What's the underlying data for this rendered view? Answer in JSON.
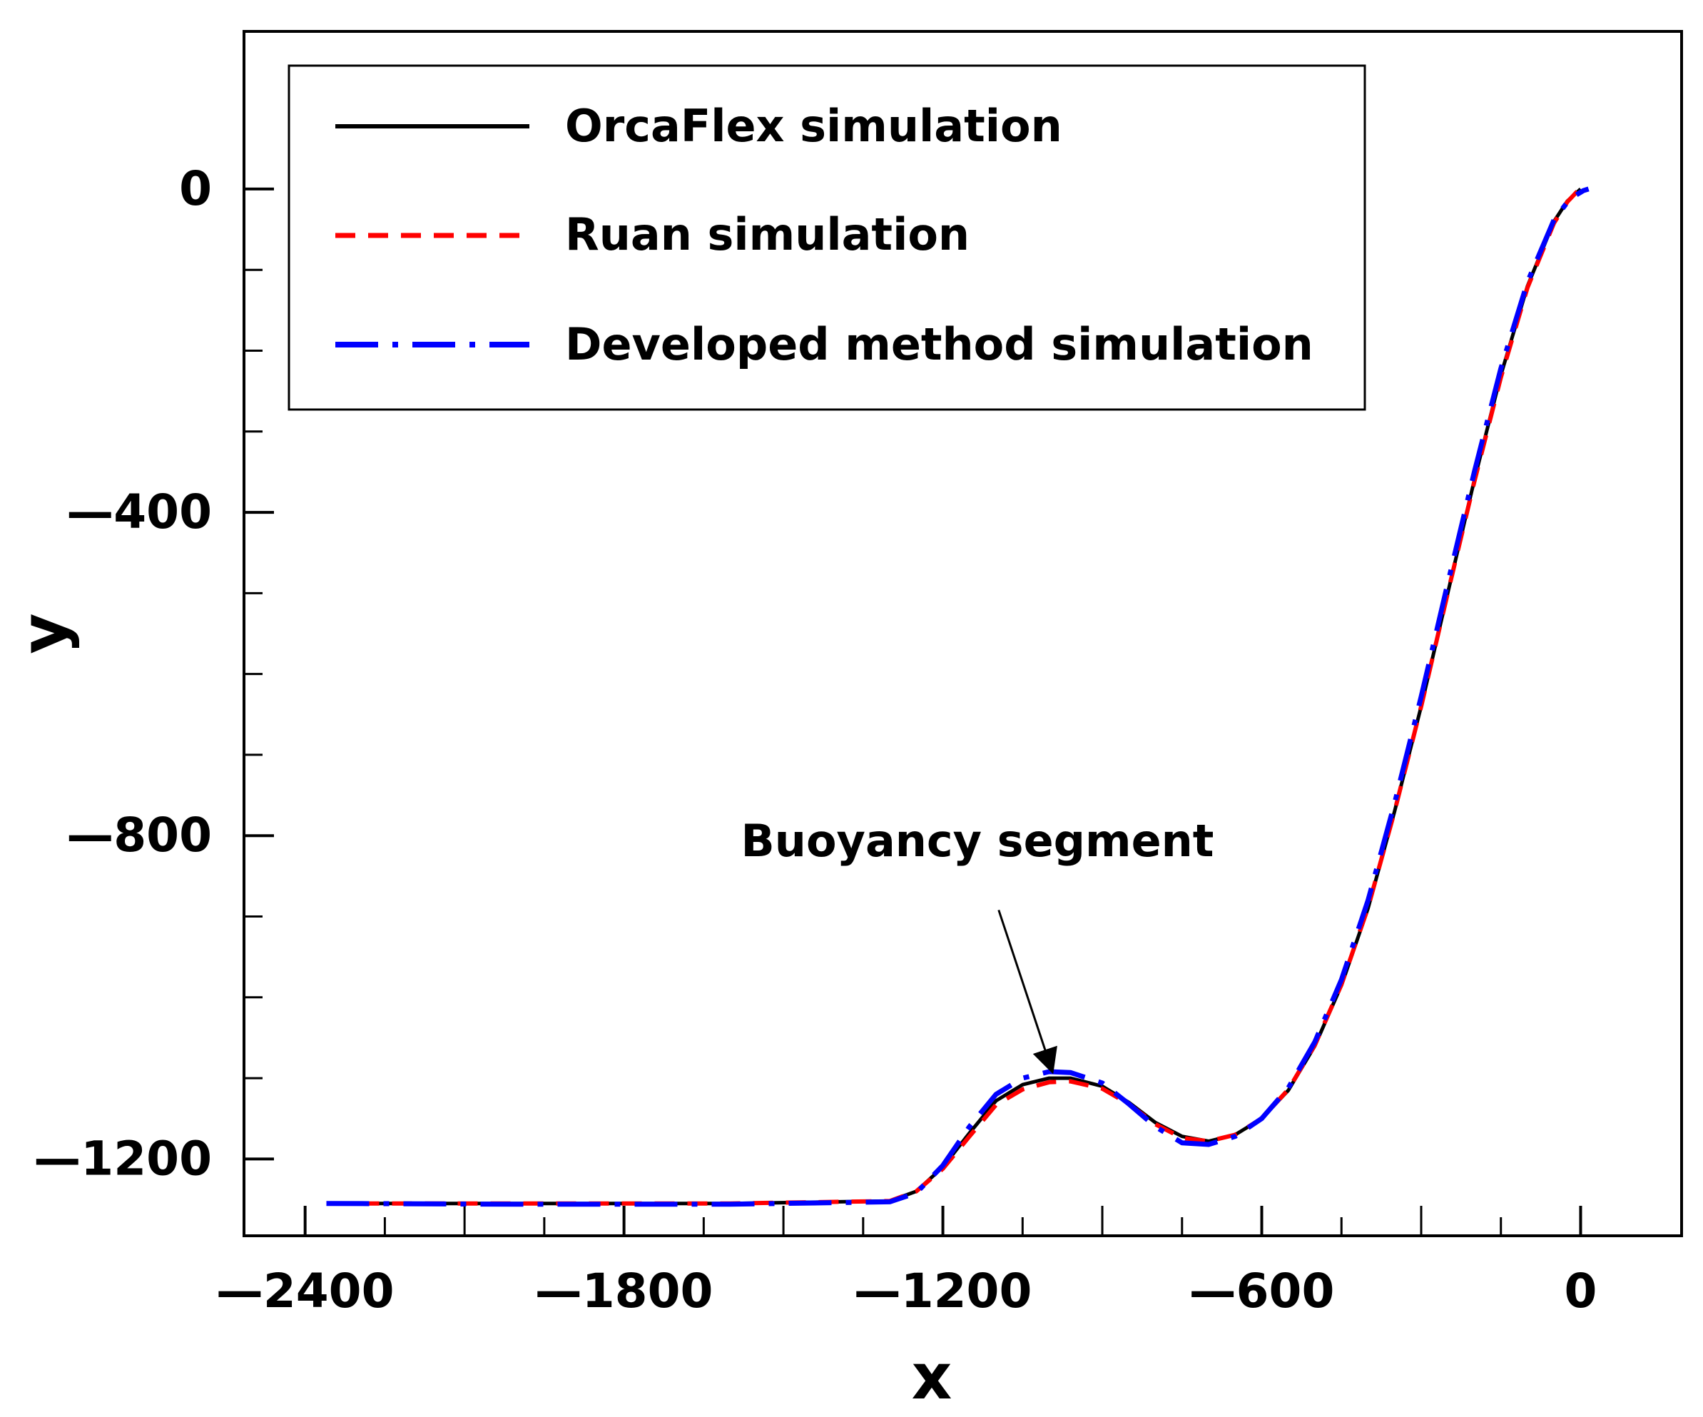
{
  "chart_data": {
    "type": "line",
    "title": "",
    "xlabel": "x",
    "ylabel": "y",
    "xlim": [
      -2515,
      190
    ],
    "ylim": [
      -1295,
      195
    ],
    "x_ticks": [
      {
        "value": -2400,
        "label": "—2400"
      },
      {
        "value": -1800,
        "label": "—1800"
      },
      {
        "value": -1200,
        "label": "—1200"
      },
      {
        "value": -600,
        "label": "—600"
      },
      {
        "value": 0,
        "label": "0"
      }
    ],
    "x_minor_ticks": [
      -2100,
      -1500,
      -900,
      -300,
      -2250,
      -1950,
      -1650,
      -1350,
      -1050,
      -750,
      -450,
      -150
    ],
    "y_ticks": [
      {
        "value": 0,
        "label": "0"
      },
      {
        "value": -400,
        "label": "—400"
      },
      {
        "value": -800,
        "label": "—800"
      },
      {
        "value": -1200,
        "label": "—1200"
      }
    ],
    "y_minor_ticks": [
      -100,
      -200,
      -300,
      -500,
      -600,
      -700,
      -900,
      -1000,
      -1100
    ],
    "legend_position": "top-left",
    "series": [
      {
        "name": "OrcaFlex simulation",
        "color": "#000000",
        "style": "solid",
        "x": [
          -2360,
          -2000,
          -1600,
          -1300,
          -1250,
          -1200,
          -1150,
          -1100,
          -1050,
          -1000,
          -960,
          -900,
          -850,
          -800,
          -750,
          -700,
          -650,
          -600,
          -550,
          -500,
          -450,
          -400,
          -350,
          -300,
          -250,
          -200,
          -150,
          -100,
          -50,
          -25,
          0
        ],
        "y": [
          -1255,
          -1255,
          -1255,
          -1252,
          -1240,
          -1210,
          -1168,
          -1128,
          -1108,
          -1100,
          -1100,
          -1110,
          -1130,
          -1155,
          -1172,
          -1178,
          -1170,
          -1150,
          -1115,
          -1060,
          -985,
          -890,
          -770,
          -640,
          -500,
          -360,
          -230,
          -120,
          -40,
          -15,
          0
        ]
      },
      {
        "name": "Ruan simulation",
        "color": "#ff0000",
        "style": "dashed",
        "x": [
          -2360,
          -2000,
          -1600,
          -1300,
          -1250,
          -1200,
          -1150,
          -1100,
          -1050,
          -1000,
          -960,
          -900,
          -850,
          -800,
          -750,
          -700,
          -650,
          -600,
          -550,
          -500,
          -450,
          -400,
          -350,
          -300,
          -250,
          -200,
          -150,
          -100,
          -50,
          -25,
          -5
        ],
        "y": [
          -1255,
          -1255,
          -1255,
          -1252,
          -1240,
          -1212,
          -1172,
          -1133,
          -1114,
          -1105,
          -1104,
          -1113,
          -1132,
          -1157,
          -1174,
          -1178,
          -1170,
          -1150,
          -1114,
          -1059,
          -984,
          -889,
          -770,
          -640,
          -500,
          -362,
          -233,
          -122,
          -42,
          -16,
          -2
        ]
      },
      {
        "name": "Developed method simulation",
        "color": "#0000ff",
        "style": "dashdot",
        "x": [
          -2360,
          -2000,
          -1600,
          -1300,
          -1250,
          -1200,
          -1150,
          -1100,
          -1050,
          -1000,
          -960,
          -900,
          -850,
          -800,
          -750,
          -700,
          -650,
          -600,
          -550,
          -500,
          -450,
          -400,
          -350,
          -300,
          -250,
          -200,
          -150,
          -100,
          -50,
          -20,
          5,
          15
        ],
        "y": [
          -1255,
          -1256,
          -1256,
          -1253,
          -1242,
          -1208,
          -1160,
          -1120,
          -1100,
          -1092,
          -1093,
          -1106,
          -1132,
          -1160,
          -1180,
          -1182,
          -1172,
          -1150,
          -1112,
          -1055,
          -978,
          -880,
          -760,
          -628,
          -488,
          -350,
          -222,
          -115,
          -38,
          -12,
          -2,
          0
        ]
      }
    ],
    "annotations": [
      {
        "text": "Buoyancy segment",
        "arrow_from": [
          -1095,
          -892
        ],
        "arrow_to": [
          -995,
          -1090
        ]
      }
    ]
  }
}
